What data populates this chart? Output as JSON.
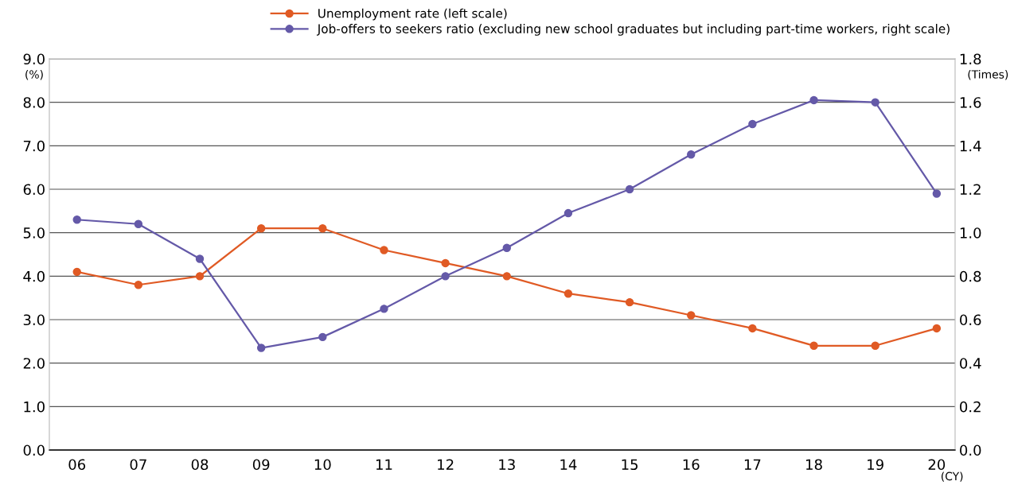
{
  "chart_data": {
    "type": "line",
    "categories": [
      "06",
      "07",
      "08",
      "09",
      "10",
      "11",
      "12",
      "13",
      "14",
      "15",
      "16",
      "17",
      "18",
      "19",
      "20"
    ],
    "series": [
      {
        "name": "Unemployment rate (left scale)",
        "color": "#e05a24",
        "values": [
          4.1,
          3.8,
          4.0,
          5.1,
          5.1,
          4.6,
          4.3,
          4.0,
          3.6,
          3.4,
          3.1,
          2.8,
          2.4,
          2.4,
          2.8
        ]
      },
      {
        "name": "Job-offers to seekers ratio (excluding new school graduates but including part-time workers, right scale)",
        "color": "#6459a8",
        "axis": "y2",
        "values": [
          1.06,
          1.04,
          0.88,
          0.47,
          0.52,
          0.65,
          0.8,
          0.93,
          1.09,
          1.2,
          1.36,
          1.5,
          1.61,
          1.6,
          1.18
        ]
      }
    ],
    "ylim": [
      0,
      9
    ],
    "yticks": [
      {
        "value": 0,
        "label": "0.0"
      },
      {
        "value": 1,
        "label": "1.0"
      },
      {
        "value": 2,
        "label": "2.0"
      },
      {
        "value": 3,
        "label": "3.0"
      },
      {
        "value": 4,
        "label": "4.0"
      },
      {
        "value": 5,
        "label": "5.0"
      },
      {
        "value": 6,
        "label": "6.0"
      },
      {
        "value": 7,
        "label": "7.0"
      },
      {
        "value": 8,
        "label": "8.0"
      },
      {
        "value": 9,
        "label": "9.0"
      }
    ],
    "y2lim": [
      0,
      1.8
    ],
    "y2ticks": [
      {
        "value": 0,
        "label": "0.0"
      },
      {
        "value": 0.2,
        "label": "0.2"
      },
      {
        "value": 0.4,
        "label": "0.4"
      },
      {
        "value": 0.6,
        "label": "0.6"
      },
      {
        "value": 0.8,
        "label": "0.8"
      },
      {
        "value": 1.0,
        "label": "1.0"
      },
      {
        "value": 1.2,
        "label": "1.2"
      },
      {
        "value": 1.4,
        "label": "1.4"
      },
      {
        "value": 1.6,
        "label": "1.6"
      },
      {
        "value": 1.8,
        "label": "1.8"
      }
    ],
    "annotations": [
      "(%)",
      "(Times)",
      "(CY)"
    ],
    "grid": "y",
    "legend": "top",
    "marker": "circle",
    "line_style": "solid"
  }
}
